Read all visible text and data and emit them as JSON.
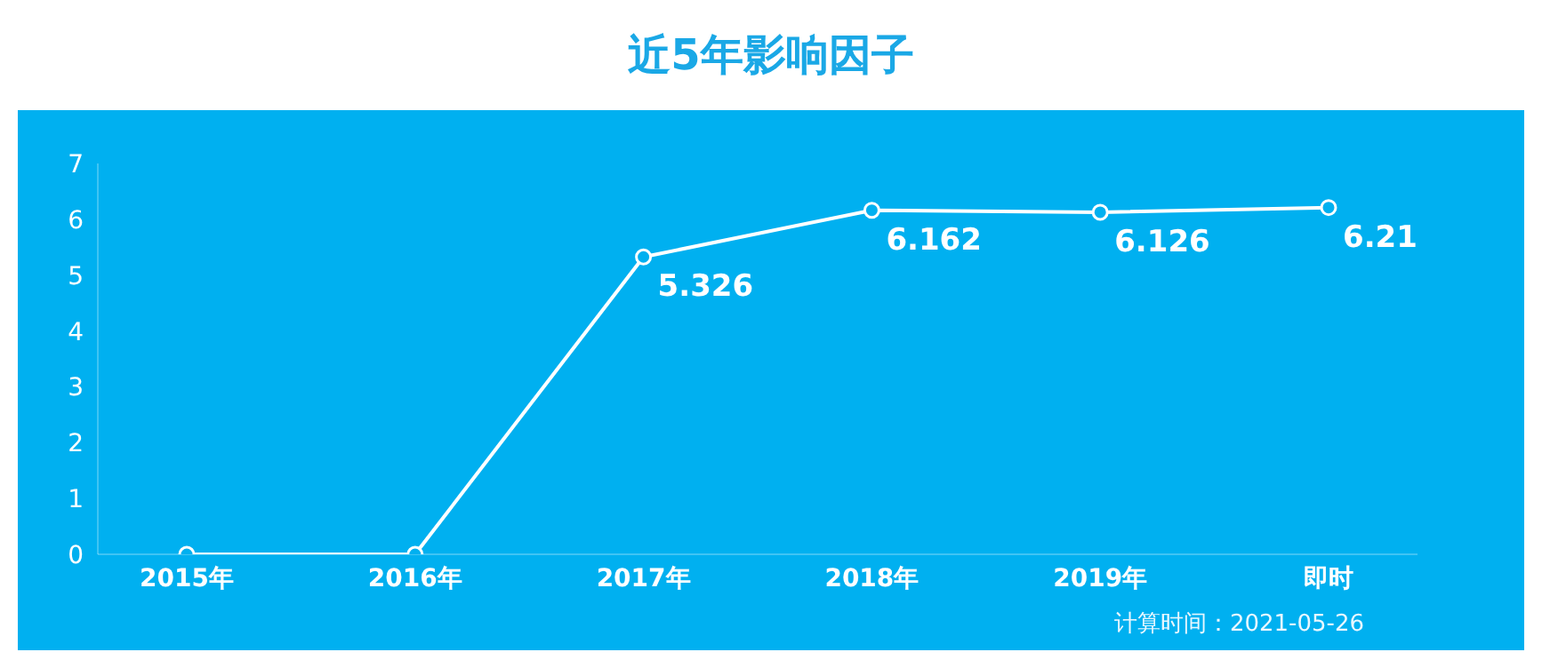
{
  "chart_data": {
    "type": "line",
    "title": "近5年影响因子",
    "categories": [
      "2015年",
      "2016年",
      "2017年",
      "2018年",
      "2019年",
      "即时"
    ],
    "series": [
      {
        "color": "#ffffff",
        "values": [
          0,
          0,
          5.326,
          6.162,
          6.126,
          6.21
        ],
        "value_labels": [
          null,
          null,
          "5.326",
          "6.162",
          "6.126",
          "6.21"
        ]
      }
    ],
    "ylim": [
      0,
      7
    ],
    "yticks": [
      0,
      1,
      2,
      3,
      4,
      5,
      6,
      7
    ],
    "grid": false,
    "legend": false,
    "marker": "circle",
    "line_style": "solid",
    "annotations": [
      "计算时间：2021-05-26"
    ]
  }
}
